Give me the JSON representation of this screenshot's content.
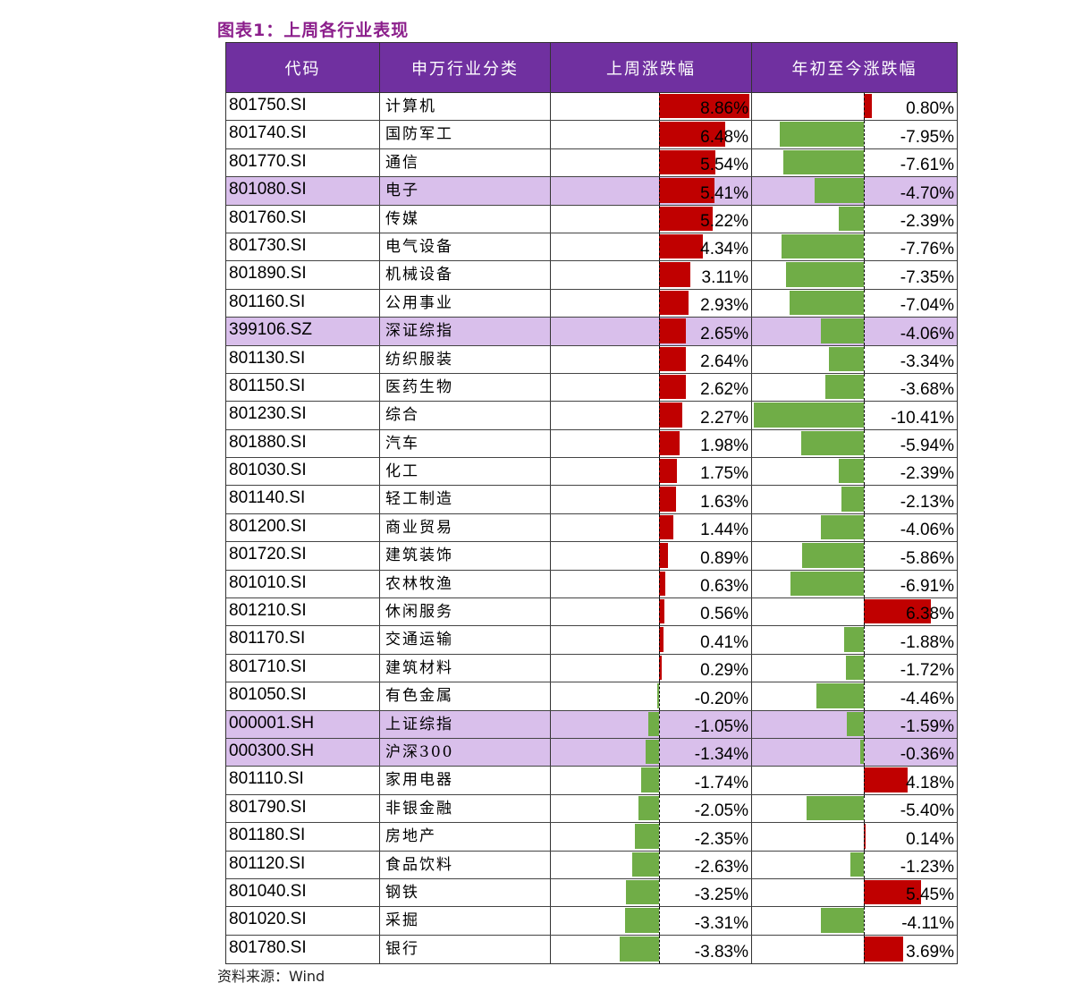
{
  "title": "图表1：上周各行业表现",
  "source": "资料来源：Wind",
  "colors": {
    "header_bg": "#7030A0",
    "highlight_bg": "#D9BFEB",
    "positive": "#C00000",
    "negative": "#70AD47"
  },
  "chart_data": {
    "type": "table",
    "columns": [
      "代码",
      "申万行业分类",
      "上周涨跌幅",
      "年初至今涨跌幅"
    ],
    "rows": [
      {
        "code": "801750.SI",
        "name": "计算机",
        "week": 8.86,
        "ytd": 0.8,
        "highlight": false
      },
      {
        "code": "801740.SI",
        "name": "国防军工",
        "week": 6.48,
        "ytd": -7.95,
        "highlight": false
      },
      {
        "code": "801770.SI",
        "name": "通信",
        "week": 5.54,
        "ytd": -7.61,
        "highlight": false
      },
      {
        "code": "801080.SI",
        "name": "电子",
        "week": 5.41,
        "ytd": -4.7,
        "highlight": true
      },
      {
        "code": "801760.SI",
        "name": "传媒",
        "week": 5.22,
        "ytd": -2.39,
        "highlight": false
      },
      {
        "code": "801730.SI",
        "name": "电气设备",
        "week": 4.34,
        "ytd": -7.76,
        "highlight": false
      },
      {
        "code": "801890.SI",
        "name": "机械设备",
        "week": 3.11,
        "ytd": -7.35,
        "highlight": false
      },
      {
        "code": "801160.SI",
        "name": "公用事业",
        "week": 2.93,
        "ytd": -7.04,
        "highlight": false
      },
      {
        "code": "399106.SZ",
        "name": "深证综指",
        "week": 2.65,
        "ytd": -4.06,
        "highlight": true
      },
      {
        "code": "801130.SI",
        "name": "纺织服装",
        "week": 2.64,
        "ytd": -3.34,
        "highlight": false
      },
      {
        "code": "801150.SI",
        "name": "医药生物",
        "week": 2.62,
        "ytd": -3.68,
        "highlight": false
      },
      {
        "code": "801230.SI",
        "name": "综合",
        "week": 2.27,
        "ytd": -10.41,
        "highlight": false
      },
      {
        "code": "801880.SI",
        "name": "汽车",
        "week": 1.98,
        "ytd": -5.94,
        "highlight": false
      },
      {
        "code": "801030.SI",
        "name": "化工",
        "week": 1.75,
        "ytd": -2.39,
        "highlight": false
      },
      {
        "code": "801140.SI",
        "name": "轻工制造",
        "week": 1.63,
        "ytd": -2.13,
        "highlight": false
      },
      {
        "code": "801200.SI",
        "name": "商业贸易",
        "week": 1.44,
        "ytd": -4.06,
        "highlight": false
      },
      {
        "code": "801720.SI",
        "name": "建筑装饰",
        "week": 0.89,
        "ytd": -5.86,
        "highlight": false
      },
      {
        "code": "801010.SI",
        "name": "农林牧渔",
        "week": 0.63,
        "ytd": -6.91,
        "highlight": false
      },
      {
        "code": "801210.SI",
        "name": "休闲服务",
        "week": 0.56,
        "ytd": 6.38,
        "highlight": false
      },
      {
        "code": "801170.SI",
        "name": "交通运输",
        "week": 0.41,
        "ytd": -1.88,
        "highlight": false
      },
      {
        "code": "801710.SI",
        "name": "建筑材料",
        "week": 0.29,
        "ytd": -1.72,
        "highlight": false
      },
      {
        "code": "801050.SI",
        "name": "有色金属",
        "week": -0.2,
        "ytd": -4.46,
        "highlight": false
      },
      {
        "code": "000001.SH",
        "name": "上证综指",
        "week": -1.05,
        "ytd": -1.59,
        "highlight": true
      },
      {
        "code": "000300.SH",
        "name": "沪深300",
        "week": -1.34,
        "ytd": -0.36,
        "highlight": true
      },
      {
        "code": "801110.SI",
        "name": "家用电器",
        "week": -1.74,
        "ytd": 4.18,
        "highlight": false
      },
      {
        "code": "801790.SI",
        "name": "非银金融",
        "week": -2.05,
        "ytd": -5.4,
        "highlight": false
      },
      {
        "code": "801180.SI",
        "name": "房地产",
        "week": -2.35,
        "ytd": 0.14,
        "highlight": false
      },
      {
        "code": "801120.SI",
        "name": "食品饮料",
        "week": -2.63,
        "ytd": -1.23,
        "highlight": false
      },
      {
        "code": "801040.SI",
        "name": "钢铁",
        "week": -3.25,
        "ytd": 5.45,
        "highlight": false
      },
      {
        "code": "801020.SI",
        "name": "采掘",
        "week": -3.31,
        "ytd": -4.11,
        "highlight": false
      },
      {
        "code": "801780.SI",
        "name": "银行",
        "week": -3.83,
        "ytd": 3.69,
        "highlight": false
      }
    ]
  }
}
